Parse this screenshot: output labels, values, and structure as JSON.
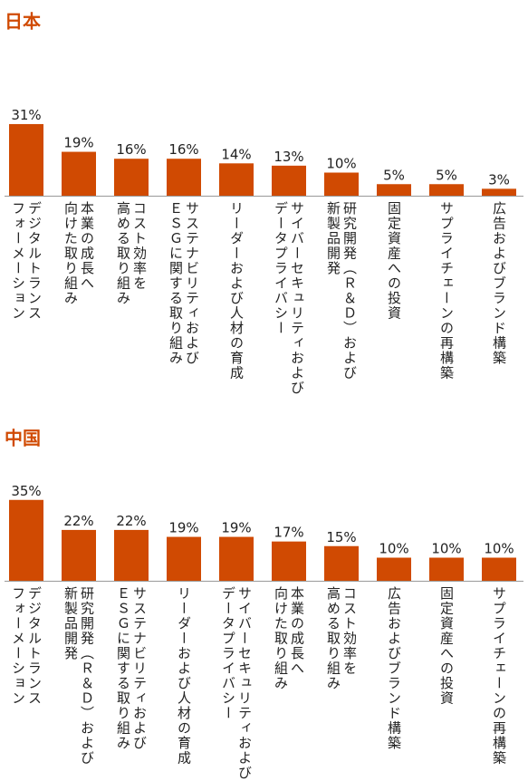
{
  "chart_data": [
    {
      "type": "bar",
      "title": "日本",
      "color": "#d04a02",
      "categories": [
        "デジタルトランス\nフォーメーション",
        "本業の成長へ\n向けた取り組み",
        "コスト効率を\n高める取り組み",
        "サステナビリティおよび\nＥＳＧに関する取り組み",
        "リーダーおよび人材の育成",
        "サイバーセキュリティおよび\nデータプライバシー",
        "研究開発（Ｒ＆Ｄ）および\n新製品開発",
        "固定資産への投資",
        "サプライチェーンの再構築",
        "広告およびブランド構築"
      ],
      "values": [
        31,
        19,
        16,
        16,
        14,
        13,
        10,
        5,
        5,
        3
      ],
      "value_labels": [
        "31%",
        "19%",
        "16%",
        "16%",
        "14%",
        "13%",
        "10%",
        "5%",
        "5%",
        "3%"
      ]
    },
    {
      "type": "bar",
      "title": "中国",
      "color": "#d04a02",
      "categories": [
        "デジタルトランス\nフォーメーション",
        "研究開発（Ｒ＆Ｄ）および\n新製品開発",
        "サステナビリティおよび\nＥＳＧに関する取り組み",
        "リーダーおよび人材の育成",
        "サイバーセキュリティおよび\nデータプライバシー",
        "本業の成長へ\n向けた取り組み",
        "コスト効率を\n高める取り組み",
        "広告およびブランド構築",
        "固定資産への投資",
        "サプライチェーンの再構築"
      ],
      "values": [
        35,
        22,
        22,
        19,
        19,
        17,
        15,
        10,
        10,
        10
      ],
      "value_labels": [
        "35%",
        "22%",
        "22%",
        "19%",
        "19%",
        "17%",
        "15%",
        "10%",
        "10%",
        "10%"
      ]
    }
  ]
}
